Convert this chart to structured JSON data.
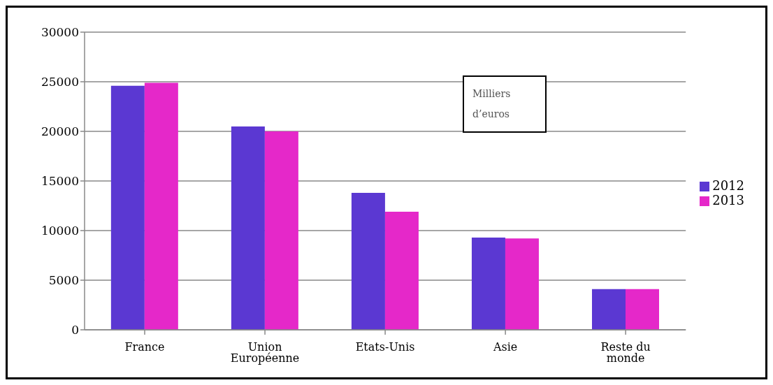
{
  "chart_data": {
    "type": "bar",
    "categories": [
      "France",
      "Union Européenne",
      "Etats-Unis",
      "Asie",
      "Reste du monde"
    ],
    "series": [
      {
        "name": "2012",
        "color": "#5b38d2",
        "values": [
          24600,
          20500,
          13800,
          9300,
          4100
        ]
      },
      {
        "name": "2013",
        "color": "#e528c9",
        "values": [
          24900,
          20000,
          11900,
          9200,
          4100
        ]
      }
    ],
    "ylim": [
      0,
      30000
    ],
    "yticks": [
      0,
      5000,
      10000,
      15000,
      20000,
      25000,
      30000
    ],
    "grid": "y",
    "legend": "right",
    "annotations": [
      "Milliers d’euros"
    ]
  }
}
